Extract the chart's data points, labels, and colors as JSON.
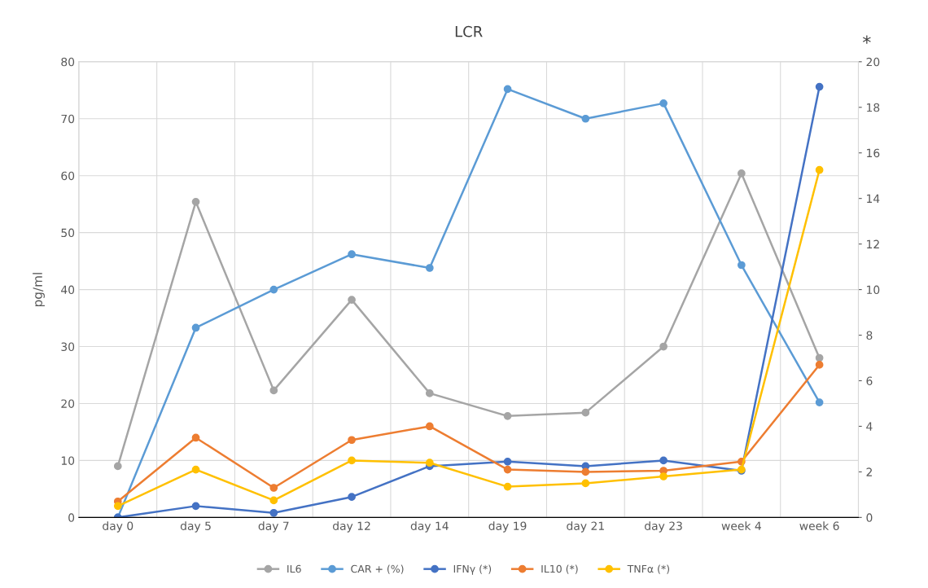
{
  "chart_data": {
    "type": "line",
    "title": "LCR",
    "ylabel": "pg/ml",
    "y2label": "*",
    "categories": [
      "day 0",
      "day 5",
      "day 7",
      "day 12",
      "day 14",
      "day 19",
      "day 21",
      "day 23",
      "week 4",
      "week 6"
    ],
    "series": [
      {
        "name": "IL6",
        "color": "#a5a5a5",
        "values": [
          9,
          55.4,
          22.3,
          38.2,
          21.8,
          17.8,
          18.4,
          30,
          60.4,
          28
        ]
      },
      {
        "name": "CAR + (%)",
        "color": "#5b9bd5",
        "values": [
          0,
          33.3,
          40,
          46.2,
          43.8,
          75.2,
          70,
          72.7,
          44.3,
          20.2
        ]
      },
      {
        "name": "IFNγ (*)",
        "color": "#4472c4",
        "axis": "y2",
        "values": [
          0,
          0.5,
          0.2,
          0.9,
          2.25,
          2.45,
          2.25,
          2.5,
          2.05,
          18.9
        ]
      },
      {
        "name": "IL10 (*)",
        "color": "#ed7d31",
        "axis": "y2",
        "values": [
          0.7,
          3.5,
          1.3,
          3.4,
          4.0,
          2.1,
          2.0,
          2.05,
          2.45,
          6.7
        ]
      },
      {
        "name": "TNFα (*)",
        "color": "#ffc000",
        "axis": "y2",
        "values": [
          0.5,
          2.1,
          0.75,
          2.5,
          2.4,
          1.35,
          1.5,
          1.8,
          2.1,
          15.25
        ]
      }
    ],
    "ylim": [
      0,
      80
    ],
    "yticks": [
      0,
      10,
      20,
      30,
      40,
      50,
      60,
      70,
      80
    ],
    "y2lim": [
      0,
      20
    ],
    "y2ticks": [
      0,
      2,
      4,
      6,
      8,
      10,
      12,
      14,
      16,
      18,
      20
    ],
    "grid": true,
    "legend": "bottom",
    "marker": "circle",
    "line_style": "solid"
  }
}
